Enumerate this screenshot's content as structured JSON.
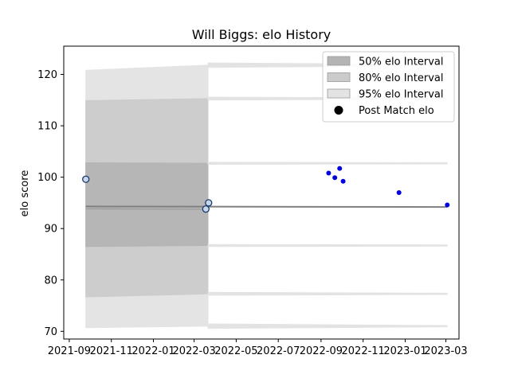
{
  "chart_data": {
    "type": "scatter",
    "title": "Will Biggs: elo History",
    "xlabel": "",
    "ylabel": "elo score",
    "xlim": [
      "2021-08-24",
      "2023-03-20"
    ],
    "ylim": [
      68.5,
      125.5
    ],
    "x_ticks": [
      "2021-09",
      "2021-11",
      "2022-01",
      "2022-03",
      "2022-05",
      "2022-07",
      "2022-09",
      "2022-11",
      "2023-01",
      "2023-03"
    ],
    "y_ticks": [
      70,
      80,
      90,
      100,
      110,
      120
    ],
    "grid": false,
    "legend": {
      "placement": "top-right",
      "entries": [
        "50% elo Interval",
        "80% elo Interval",
        "95% elo Interval",
        "Post Match elo"
      ]
    },
    "colors": {
      "band_50": "#b4b4b4",
      "band_80": "#cbcbcb",
      "band_95": "#e3e3e3",
      "mean_line": "#808080",
      "points": "#0000dd",
      "highlight_edge": "#1a3a6e"
    },
    "intervals": [
      {
        "date": "2021-09-25",
        "mean": 94.3,
        "lo50": 86.5,
        "hi50": 102.8,
        "lo80": 76.7,
        "hi80": 114.9,
        "lo95": 70.7,
        "hi95": 120.8
      },
      {
        "date": "2022-03-21",
        "mean": 94.2,
        "lo50": 86.7,
        "hi50": 102.7,
        "lo80": 77.3,
        "hi80": 115.3,
        "lo95": 71.0,
        "hi95": 121.8
      }
    ],
    "series": [
      {
        "name": "Post Match elo",
        "points": [
          {
            "date": "2021-09-25",
            "elo": 99.6,
            "highlight": true
          },
          {
            "date": "2022-03-18",
            "elo": 93.8,
            "highlight": true
          },
          {
            "date": "2022-03-22",
            "elo": 95.0,
            "highlight": true
          },
          {
            "date": "2022-09-12",
            "elo": 100.8,
            "highlight": false
          },
          {
            "date": "2022-09-21",
            "elo": 99.9,
            "highlight": false
          },
          {
            "date": "2022-09-28",
            "elo": 101.7,
            "highlight": false
          },
          {
            "date": "2022-10-03",
            "elo": 99.2,
            "highlight": false
          },
          {
            "date": "2022-12-23",
            "elo": 97.0,
            "highlight": false
          },
          {
            "date": "2023-03-03",
            "elo": 94.6,
            "highlight": false
          }
        ]
      }
    ]
  }
}
